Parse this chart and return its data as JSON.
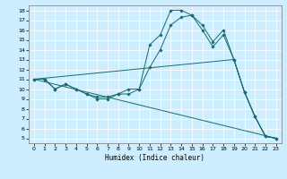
{
  "xlabel": "Humidex (Indice chaleur)",
  "bg_color": "#cceeff",
  "line_color": "#1a6b6b",
  "grid_color": "#ffffff",
  "xlim": [
    -0.5,
    23.5
  ],
  "ylim": [
    4.5,
    18.5
  ],
  "xticks": [
    0,
    1,
    2,
    3,
    4,
    5,
    6,
    7,
    8,
    9,
    10,
    11,
    12,
    13,
    14,
    15,
    16,
    17,
    18,
    19,
    20,
    21,
    22,
    23
  ],
  "yticks": [
    5,
    6,
    7,
    8,
    9,
    10,
    11,
    12,
    13,
    14,
    15,
    16,
    17,
    18
  ],
  "series_with_markers": [
    {
      "x": [
        0,
        1,
        2,
        3,
        4,
        5,
        6,
        7,
        8,
        9,
        10,
        11,
        12,
        13,
        14,
        15,
        16,
        17,
        18,
        19,
        20,
        21,
        22,
        23
      ],
      "y": [
        11,
        11,
        10,
        10.5,
        10,
        9.5,
        9,
        9,
        9.5,
        9.5,
        10,
        14.5,
        15.5,
        18,
        18,
        17.5,
        16.5,
        14.8,
        16,
        13,
        9.7,
        7.2,
        5.2,
        5
      ]
    },
    {
      "x": [
        0,
        1,
        2,
        3,
        4,
        5,
        6,
        7,
        8,
        9,
        10,
        11,
        12,
        13,
        14,
        15,
        16,
        17,
        18,
        19,
        20,
        21,
        22,
        23
      ],
      "y": [
        11,
        11,
        10,
        10.5,
        10,
        9.5,
        9.2,
        9.2,
        9.5,
        10,
        10,
        12.2,
        14,
        16.5,
        17.3,
        17.5,
        16,
        14.3,
        15.5,
        13,
        9.7,
        7.2,
        5.2,
        5
      ]
    }
  ],
  "series_no_markers": [
    {
      "x": [
        0,
        23
      ],
      "y": [
        11,
        5
      ]
    },
    {
      "x": [
        0,
        19,
        20,
        21,
        22,
        23
      ],
      "y": [
        11,
        13,
        9.7,
        7.2,
        5.2,
        5
      ]
    }
  ]
}
